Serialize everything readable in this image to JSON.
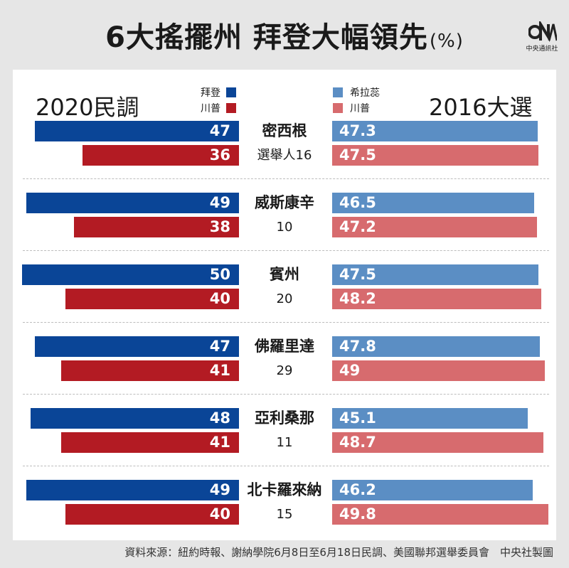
{
  "title": "6大搖擺州 拜登大幅領先",
  "title_unit": "(%)",
  "logo": {
    "mark_text": "CNA",
    "caption": "中央通訊社"
  },
  "chart_data": {
    "type": "bar",
    "left_title": "2020民調",
    "right_title": "2016大選",
    "left_legend": [
      {
        "name": "拜登",
        "color": "#0a4597"
      },
      {
        "name": "川普",
        "color": "#b31b23"
      }
    ],
    "right_legend": [
      {
        "name": "希拉蕊",
        "color": "#5b8ec4"
      },
      {
        "name": "川普",
        "color": "#d76b6e"
      }
    ],
    "states": [
      {
        "name": "密西根",
        "electors": "選舉人16",
        "biden": 47,
        "trump_2020": 36,
        "clinton": "47.3",
        "trump_2016": "47.5"
      },
      {
        "name": "威斯康辛",
        "electors": "10",
        "biden": 49,
        "trump_2020": 38,
        "clinton": "46.5",
        "trump_2016": "47.2"
      },
      {
        "name": "賓州",
        "electors": "20",
        "biden": 50,
        "trump_2020": 40,
        "clinton": "47.5",
        "trump_2016": "48.2"
      },
      {
        "name": "佛羅里達",
        "electors": "29",
        "biden": 47,
        "trump_2020": 41,
        "clinton": "47.8",
        "trump_2016": "49"
      },
      {
        "name": "亞利桑那",
        "electors": "11",
        "biden": 48,
        "trump_2020": 41,
        "clinton": "45.1",
        "trump_2016": "48.7"
      },
      {
        "name": "北卡羅來納",
        "electors": "15",
        "biden": 49,
        "trump_2020": 40,
        "clinton": "46.2",
        "trump_2016": "49.8"
      }
    ]
  },
  "footer": "資料來源：紐約時報、謝納學院6月8日至6月18日民調、美國聯邦選舉委員會　中央社製圖"
}
